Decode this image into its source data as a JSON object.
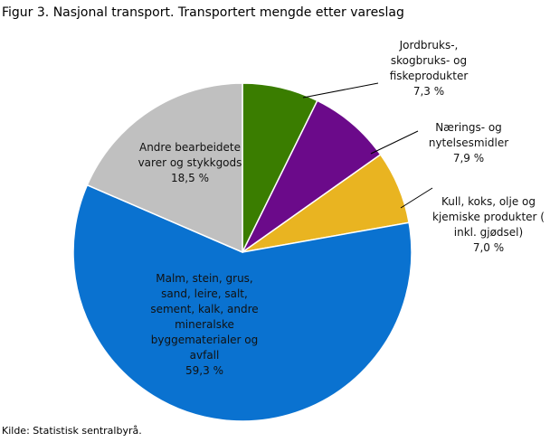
{
  "chart_data": {
    "type": "pie",
    "title": "Figur 3. Nasjonal transport. Transportert mengde etter vareslag",
    "source": "Kilde: Statistisk sentralbyrå.",
    "categories": [
      "Jordbruks-, skogbruks- og fiskeprodukter",
      "Nærings- og nytelsesmidler",
      "Kull, koks, olje og kjemiske produkter ( inkl. gjødsel)",
      "Malm, stein, grus, sand, leire, salt, sement, kalk, andre mineralske byggematerialer og avfall",
      "Andre bearbeidete varer og stykkgods"
    ],
    "values": [
      7.3,
      7.9,
      7.0,
      59.3,
      18.5
    ],
    "value_labels": [
      "7,3 %",
      "7,9 %",
      "7,0 %",
      "59,3 %",
      "18,5 %"
    ],
    "colors": [
      "#3a7d00",
      "#6b0a8a",
      "#e9b421",
      "#0a72d0",
      "#c0c0c0"
    ]
  }
}
